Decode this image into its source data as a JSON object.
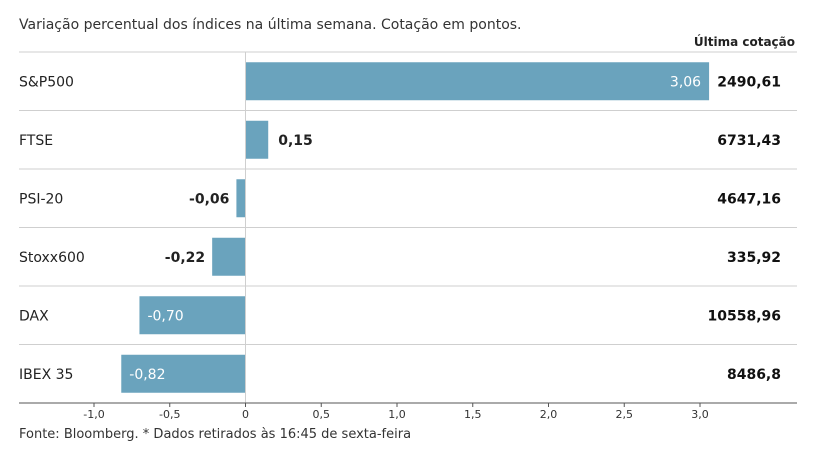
{
  "subtitle": "Variação percentual dos índices na última semana. Cotação em pontos.",
  "column_header": "Última cotação",
  "footer": "Fonte: Bloomberg.  * Dados retirados às 16:45 de sexta-feira",
  "colors": {
    "bar": "#6aa3bd",
    "separator": "#cfcfcf",
    "axis": "#555555"
  },
  "chart_data": {
    "type": "bar",
    "orientation": "horizontal",
    "title": "",
    "xlabel": "",
    "ylabel": "",
    "xlim": [
      -1.0,
      3.0
    ],
    "categories": [
      "S&P500",
      "FTSE",
      "PSI-20",
      "Stoxx600",
      "DAX",
      "IBEX 35"
    ],
    "values": [
      3.06,
      0.15,
      -0.06,
      -0.22,
      -0.7,
      -0.82
    ],
    "value_labels": [
      "3,06",
      "0,15",
      "-0,06",
      "-0,22",
      "-0,70",
      "-0,82"
    ],
    "last_quote": [
      "2490,61",
      "6731,43",
      "4647,16",
      "335,92",
      "10558,96",
      "8486,8"
    ],
    "x_ticks": [
      -1.0,
      -0.5,
      0,
      0.5,
      1.0,
      1.5,
      2.0,
      2.5,
      3.0
    ],
    "x_tick_labels": [
      "-1,0",
      "-0,5",
      "0",
      "0,5",
      "1,0",
      "1,5",
      "2,0",
      "2,5",
      "3,0"
    ],
    "grid": false
  }
}
